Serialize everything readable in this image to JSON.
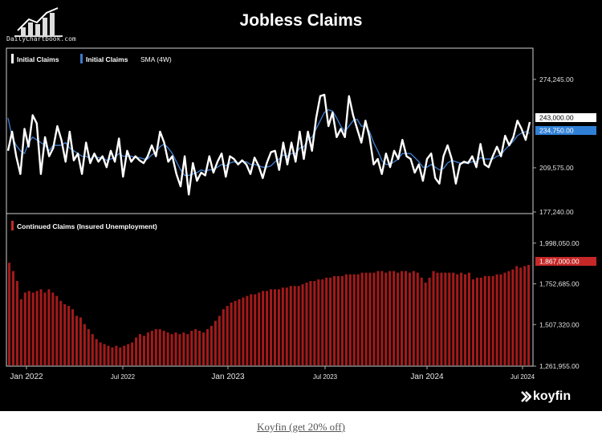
{
  "header": {
    "title": "Jobless Claims",
    "source_logo_text": "DailyChartbook.com"
  },
  "footer": {
    "brand": "koyfin",
    "caption": "Koyfin (get 20% off)"
  },
  "colors": {
    "background": "#000000",
    "initial_claims": "#ffffff",
    "sma": "#3d7ac9",
    "continued_bars": "#a31a1a",
    "continued_tag": "#c62828",
    "sma_tag": "#2f7fd6"
  },
  "chart_data": [
    {
      "type": "line",
      "legend": [
        "Initial Claims",
        "Initial Claims",
        "SMA (4W)"
      ],
      "y_ticks": [
        "274,245.00",
        "209,575.00",
        "177,240.00"
      ],
      "ylim": [
        177240,
        290000
      ],
      "last_value_labels": [
        "243,000.00",
        "234,750.00"
      ],
      "series": [
        {
          "name": "Initial Claims",
          "values": [
            222000,
            236000,
            218000,
            205000,
            238000,
            225000,
            248000,
            242000,
            205000,
            232000,
            218000,
            224000,
            240000,
            230000,
            214000,
            236000,
            215000,
            220000,
            205000,
            228000,
            213000,
            220000,
            214000,
            218000,
            210000,
            222000,
            214000,
            231000,
            203000,
            222000,
            214000,
            218000,
            215000,
            213000,
            218000,
            226000,
            218000,
            236000,
            228000,
            214000,
            218000,
            205000,
            196000,
            218000,
            190000,
            213000,
            200000,
            206000,
            204000,
            218000,
            206000,
            214000,
            220000,
            203000,
            218000,
            216000,
            212000,
            215000,
            212000,
            205000,
            217000,
            211000,
            202000,
            213000,
            221000,
            222000,
            208000,
            228000,
            212000,
            228000,
            214000,
            236000,
            216000,
            236000,
            222000,
            246000,
            262000,
            263000,
            240000,
            250000,
            232000,
            238000,
            232000,
            262000,
            248000,
            238000,
            228000,
            244000,
            232000,
            212000,
            216000,
            205000,
            220000,
            210000,
            222000,
            216000,
            230000,
            218000,
            216000,
            206000,
            212000,
            200000,
            216000,
            220000,
            202000,
            198000,
            218000,
            226000,
            216000,
            198000,
            212000,
            214000,
            213000,
            218000,
            210000,
            227000,
            212000,
            210000,
            218000,
            225000,
            218000,
            233000,
            226000,
            232000,
            244000,
            238000,
            230000,
            243000
          ]
        },
        {
          "name": "SMA (4W)",
          "values": [
            246000,
            232000,
            226000,
            222000,
            220000,
            228000,
            232000,
            230000,
            228000,
            226000,
            222000,
            226000,
            226000,
            226000,
            228000,
            224000,
            222000,
            220000,
            218000,
            218000,
            216000,
            218000,
            217000,
            217000,
            215000,
            216000,
            217000,
            220000,
            218000,
            218000,
            218000,
            217000,
            217000,
            216000,
            216000,
            219000,
            221000,
            225000,
            227000,
            224000,
            220000,
            214000,
            208000,
            204000,
            204000,
            205000,
            206000,
            208000,
            207000,
            208000,
            208000,
            210000,
            212000,
            211000,
            213000,
            214000,
            213000,
            214000,
            214000,
            212000,
            212000,
            211000,
            210000,
            210000,
            211000,
            214000,
            216000,
            219000,
            218000,
            220000,
            220000,
            224000,
            225000,
            230000,
            232000,
            238000,
            244000,
            250000,
            252000,
            251000,
            246000,
            240000,
            236000,
            240000,
            244000,
            245000,
            240000,
            240000,
            236000,
            228000,
            222000,
            215000,
            212000,
            212000,
            214000,
            216000,
            220000,
            220000,
            220000,
            217000,
            214000,
            210000,
            210000,
            212000,
            210000,
            208000,
            209000,
            213000,
            215000,
            214000,
            213000,
            213000,
            213000,
            214000,
            214000,
            217000,
            216000,
            216000,
            216000,
            218000,
            219000,
            223000,
            226000,
            229000,
            233000,
            235000,
            236000,
            234750
          ]
        }
      ]
    },
    {
      "type": "bar",
      "legend": [
        "Continued Claims (Insured Unemployment)"
      ],
      "y_ticks": [
        "1,998,050.00",
        "1,752,685.00",
        "1,507,320.00",
        "1,261,955.00"
      ],
      "ylim": [
        1261955,
        2060000
      ],
      "last_value_label": "1,867,000.00",
      "x_ticks": [
        "Jan 2022",
        "Jul 2022",
        "Jan 2023",
        "Jul 2023",
        "Jan 2024",
        "Jul 2024"
      ],
      "series": [
        {
          "name": "Continued Claims (Insured Unemployment)",
          "values": [
            1880000,
            1830000,
            1770000,
            1660000,
            1700000,
            1710000,
            1700000,
            1710000,
            1720000,
            1700000,
            1720000,
            1700000,
            1680000,
            1650000,
            1630000,
            1620000,
            1600000,
            1560000,
            1550000,
            1510000,
            1480000,
            1450000,
            1420000,
            1400000,
            1390000,
            1380000,
            1370000,
            1380000,
            1370000,
            1380000,
            1390000,
            1400000,
            1430000,
            1450000,
            1440000,
            1460000,
            1470000,
            1480000,
            1480000,
            1470000,
            1460000,
            1450000,
            1460000,
            1450000,
            1460000,
            1450000,
            1470000,
            1480000,
            1470000,
            1460000,
            1480000,
            1500000,
            1530000,
            1560000,
            1600000,
            1620000,
            1640000,
            1650000,
            1660000,
            1670000,
            1680000,
            1690000,
            1690000,
            1700000,
            1710000,
            1710000,
            1720000,
            1720000,
            1720000,
            1730000,
            1730000,
            1740000,
            1740000,
            1740000,
            1750000,
            1760000,
            1770000,
            1770000,
            1780000,
            1780000,
            1790000,
            1790000,
            1800000,
            1800000,
            1800000,
            1810000,
            1810000,
            1810000,
            1810000,
            1820000,
            1820000,
            1820000,
            1820000,
            1830000,
            1830000,
            1820000,
            1830000,
            1830000,
            1820000,
            1830000,
            1830000,
            1820000,
            1830000,
            1820000,
            1790000,
            1760000,
            1790000,
            1830000,
            1820000,
            1820000,
            1820000,
            1820000,
            1820000,
            1810000,
            1820000,
            1810000,
            1820000,
            1780000,
            1790000,
            1790000,
            1800000,
            1800000,
            1800000,
            1810000,
            1810000,
            1820000,
            1830000,
            1840000,
            1860000,
            1850000,
            1860000,
            1867000
          ]
        }
      ]
    }
  ]
}
